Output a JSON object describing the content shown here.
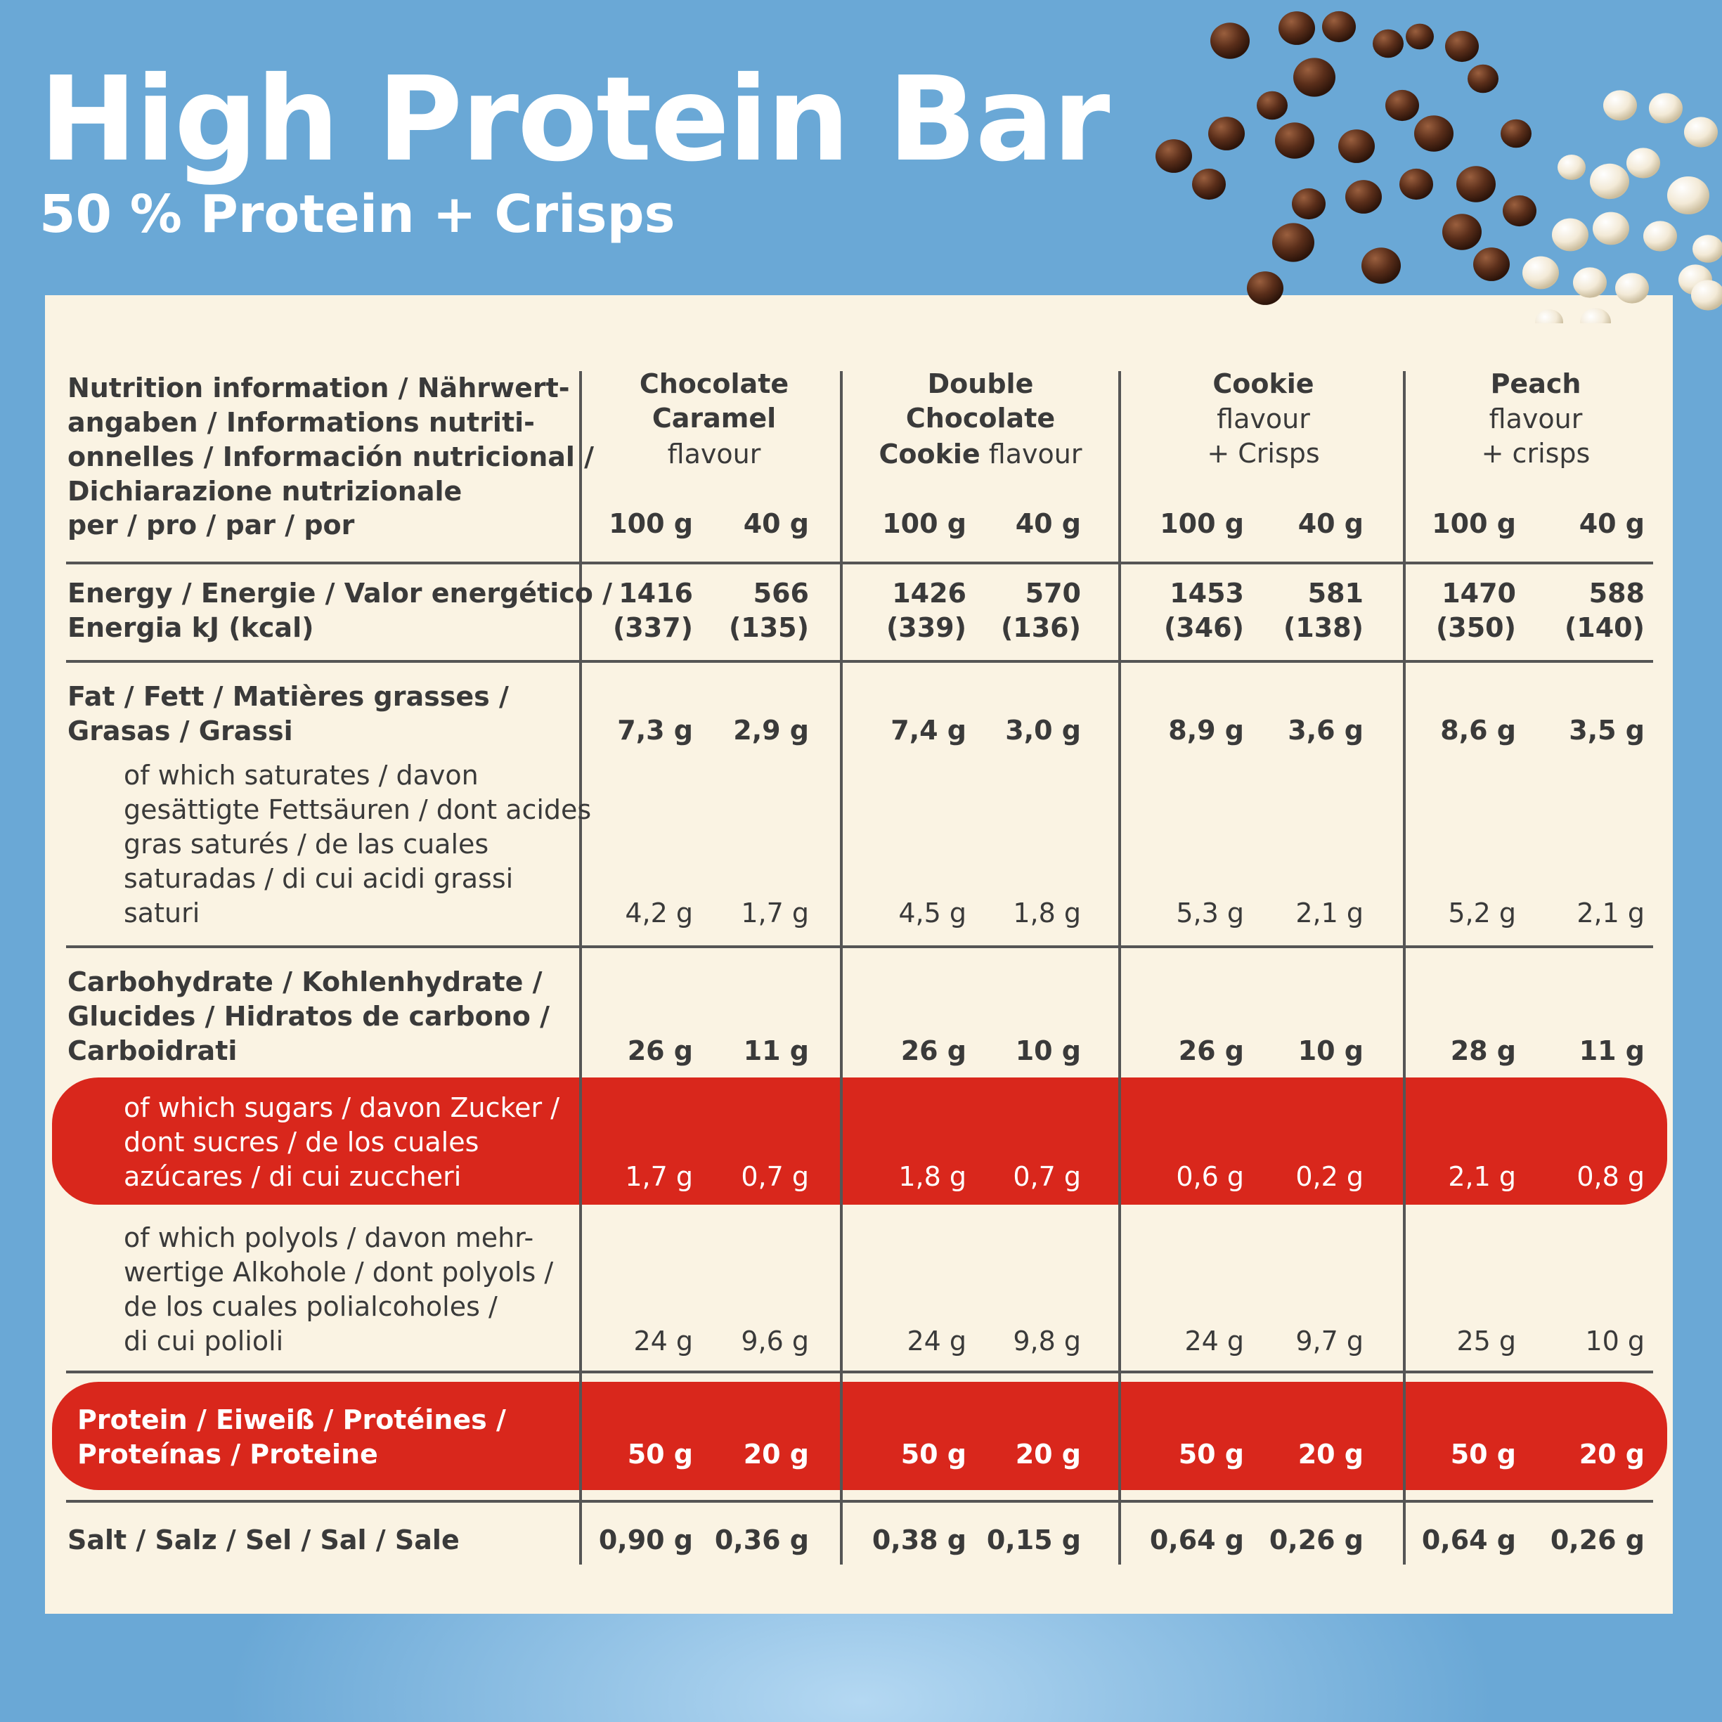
{
  "header": {
    "title": "High Protein Bar",
    "subtitle": "50 % Protein + Crisps"
  },
  "colors": {
    "background": "#6aa8d6",
    "panel": "#faf3e3",
    "highlight": "#d9271c",
    "text": "#3a3a3a",
    "rules": "#555555"
  },
  "decor": {
    "crisps": "chocolate-and-white-crisps-image"
  },
  "table": {
    "heading": "Nutrition information / Nährwert-\nangaben / Informations nutriti-\nonnelles / Información nutricional /\nDichiarazione nutrizionale",
    "per_label": "per / pro / par / por",
    "flavours": [
      {
        "name_bold": "Chocolate\nCaramel",
        "name_inline_bold": "",
        "name_rest": "flavour",
        "col1": "100 g",
        "col2": "40 g"
      },
      {
        "name_bold": "Double\nChocolate",
        "name_inline_bold": "Cookie",
        "name_rest": " flavour",
        "col1": "100 g",
        "col2": "40 g"
      },
      {
        "name_bold": "Cookie",
        "name_inline_bold": "",
        "name_rest": "flavour\n+ Crisps",
        "col1": "100 g",
        "col2": "40 g"
      },
      {
        "name_bold": "Peach",
        "name_inline_bold": "",
        "name_rest": "flavour\n+ crisps",
        "col1": "100 g",
        "col2": "40 g"
      }
    ],
    "rows": {
      "energy": {
        "label": "Energy / Energie / Valor energético /\nEnergia kJ (kcal)",
        "values": [
          "1416\n(337)",
          "566\n(135)",
          "1426\n(339)",
          "570\n(136)",
          "1453\n(346)",
          "581\n(138)",
          "1470\n(350)",
          "588\n(140)"
        ]
      },
      "fat": {
        "label": "Fat / Fett / Matières grasses /\nGrasas / Grassi",
        "values": [
          "7,3 g",
          "2,9 g",
          "7,4 g",
          "3,0 g",
          "8,9 g",
          "3,6 g",
          "8,6 g",
          "3,5 g"
        ]
      },
      "saturates": {
        "label": "of which saturates / davon\ngesättigte Fettsäuren / dont acides\ngras saturés / de las cuales\nsaturadas / di cui acidi grassi\nsaturi",
        "values": [
          "4,2 g",
          "1,7 g",
          "4,5 g",
          "1,8 g",
          "5,3 g",
          "2,1 g",
          "5,2 g",
          "2,1 g"
        ]
      },
      "carbohydrate": {
        "label": "Carbohydrate / Kohlenhydrate /\nGlucides / Hidratos de carbono /\nCarboidrati",
        "values": [
          "26 g",
          "11 g",
          "26 g",
          "10 g",
          "26 g",
          "10 g",
          "28 g",
          "11 g"
        ]
      },
      "sugars": {
        "label": "of which sugars / davon Zucker /\ndont sucres / de los cuales\nazúcares / di cui zuccheri",
        "values": [
          "1,7 g",
          "0,7 g",
          "1,8 g",
          "0,7 g",
          "0,6 g",
          "0,2 g",
          "2,1 g",
          "0,8 g"
        ]
      },
      "polyols": {
        "label": "of which polyols / davon mehr-\nwertige Alkohole / dont polyols /\nde los cuales polialcoholes /\ndi cui polioli",
        "values": [
          "24 g",
          "9,6 g",
          "24 g",
          "9,8 g",
          "24 g",
          "9,7 g",
          "25 g",
          "10 g"
        ]
      },
      "protein": {
        "label": "Protein / Eiweiß / Protéines /\nProteínas / Proteine",
        "values": [
          "50 g",
          "20 g",
          "50 g",
          "20 g",
          "50 g",
          "20 g",
          "50 g",
          "20 g"
        ]
      },
      "salt": {
        "label": "Salt / Salz / Sel / Sal / Sale",
        "values": [
          "0,90 g",
          "0,36 g",
          "0,38 g",
          "0,15 g",
          "0,64 g",
          "0,26 g",
          "0,64 g",
          "0,26 g"
        ]
      }
    }
  }
}
